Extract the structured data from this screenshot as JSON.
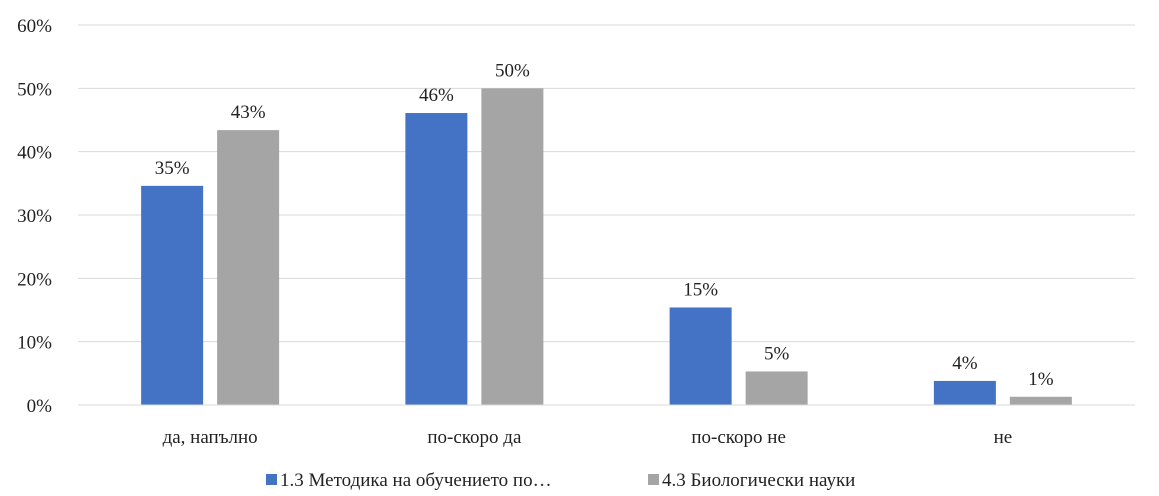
{
  "chart_data": {
    "type": "bar",
    "title": "",
    "xlabel": "",
    "ylabel": "",
    "categories": [
      "да, напълно",
      "по-скоро да",
      "по-скоро не",
      "не"
    ],
    "series": [
      {
        "name": "1.3 Методика на обучението по…",
        "color": "#4472C4",
        "values": [
          0.346,
          0.461,
          0.154,
          0.038
        ],
        "labels": [
          "35%",
          "46%",
          "15%",
          "4%"
        ]
      },
      {
        "name": "4.3 Биологически науки",
        "color": "#A5A5A5",
        "values": [
          0.434,
          0.5,
          0.053,
          0.013
        ],
        "labels": [
          "43%",
          "50%",
          "5%",
          "1%"
        ]
      }
    ],
    "ylim": [
      0,
      0.6
    ],
    "yticks": [
      0,
      0.1,
      0.2,
      0.3,
      0.4,
      0.5,
      0.6
    ],
    "ytick_labels": [
      "0%",
      "10%",
      "20%",
      "30%",
      "40%",
      "50%",
      "60%"
    ],
    "grid": true,
    "legend": "bottom-center"
  }
}
